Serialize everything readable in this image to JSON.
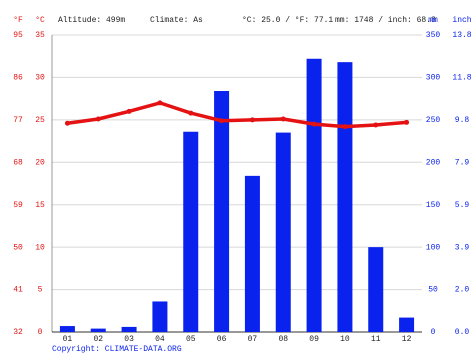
{
  "header": {
    "f_unit": "°F",
    "c_unit": "°C",
    "altitude": "Altitude: 499m",
    "climate": "Climate: As",
    "temp_avg": "°C: 25.0 / °F: 77.1",
    "precip_total": "mm: 1748 / inch: 68.8",
    "mm_unit": "mm",
    "inch_unit": "inch"
  },
  "footer": {
    "copyright": "Copyright: CLIMATE-DATA.ORG"
  },
  "chart_data": {
    "type": "combo",
    "categories": [
      "01",
      "02",
      "03",
      "04",
      "05",
      "06",
      "07",
      "08",
      "09",
      "10",
      "11",
      "12"
    ],
    "series": [
      {
        "type": "bar",
        "axis": "y2",
        "color": "#0a22ee",
        "values": [
          7,
          4,
          6,
          36,
          236,
          284,
          184,
          235,
          322,
          318,
          100,
          17
        ]
      },
      {
        "type": "line",
        "color": "#e41212",
        "values": [
          24.6,
          25.1,
          26.0,
          27.0,
          25.8,
          24.9,
          25.0,
          25.1,
          24.5,
          24.2,
          24.4,
          24.7
        ]
      }
    ],
    "ylim": [
      0,
      35
    ],
    "yticks": [
      0,
      5,
      10,
      15,
      20,
      25,
      30,
      35
    ],
    "y2lim": [
      0,
      350
    ],
    "y2ticks": [
      0,
      50,
      100,
      150,
      200,
      250,
      300,
      350
    ],
    "y3lim": [
      32,
      95
    ],
    "y3ticks": [
      32,
      41,
      50,
      59,
      68,
      77,
      86,
      95
    ],
    "y4lim": [
      0,
      13.78
    ],
    "y4ticks": [
      {
        "value": 0,
        "label": "0.0"
      },
      {
        "value": 1.969,
        "label": "2.0"
      },
      {
        "value": 3.937,
        "label": "3.9"
      },
      {
        "value": 5.906,
        "label": "5.9"
      },
      {
        "value": 7.874,
        "label": "7.9"
      },
      {
        "value": 9.843,
        "label": "9.8"
      },
      {
        "value": 11.811,
        "label": "11.8"
      },
      {
        "value": 13.78,
        "label": "13.8"
      }
    ],
    "grid": true
  }
}
